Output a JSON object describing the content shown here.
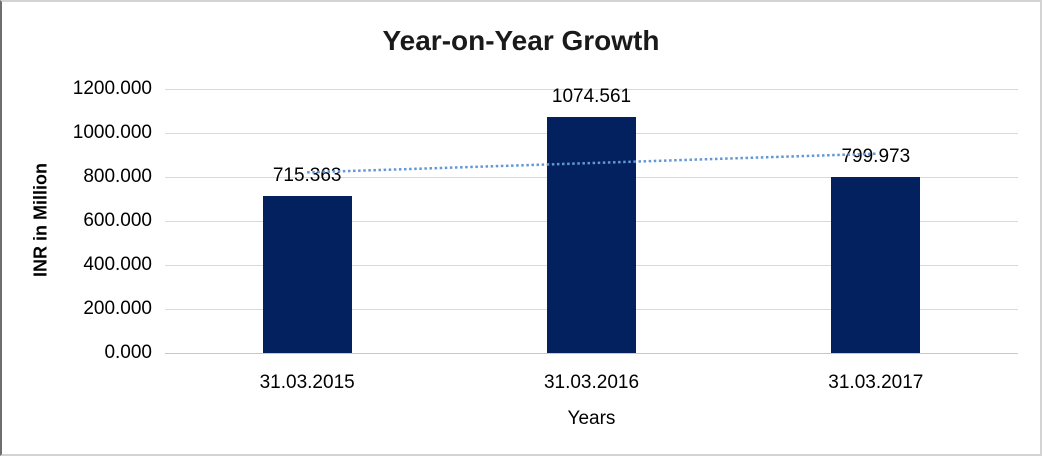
{
  "chart_data": {
    "type": "bar",
    "title": "Year-on-Year Growth",
    "xlabel": "Years",
    "ylabel": "INR in Million",
    "categories": [
      "31.03.2015",
      "31.03.2016",
      "31.03.2017"
    ],
    "values": [
      715.363,
      1074.561,
      799.973
    ],
    "data_labels": [
      "715.363",
      "1074.561",
      "799.973"
    ],
    "ytick_labels": [
      "1200.000",
      "1000.000",
      "800.000",
      "600.000",
      "400.000",
      "200.000",
      "0.000"
    ],
    "ylim": [
      0,
      1200
    ],
    "ytick_interval": 200,
    "grid": true,
    "legend": false,
    "trendline": {
      "type": "linear",
      "style": "dotted",
      "start_value": 821,
      "end_value": 906,
      "from_category": "31.03.2015",
      "to_category": "31.03.2017"
    },
    "colors": {
      "bar": "#02215e",
      "trendline": "#6397d6",
      "gridline": "#d9d9d9",
      "axis_line": "#c8c8c8",
      "label_text": "#000000",
      "title_text": "#1a1a1a",
      "border": "#d3d3d3",
      "border_left": "#6e6e6e"
    }
  }
}
